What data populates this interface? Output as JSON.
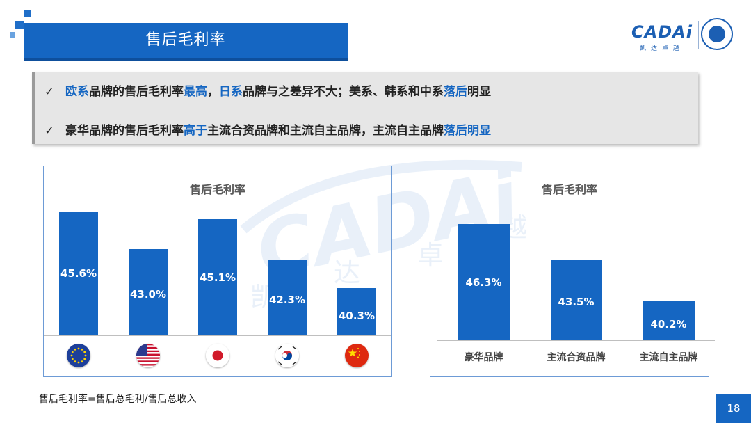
{
  "slide": {
    "title": "售后毛利率",
    "page_number": "18",
    "footnote": "售后毛利率=售后总毛利/售后总收入"
  },
  "logo": {
    "wordmark": "CADAi",
    "subtitle": "凯达卓越"
  },
  "watermark": {
    "wordmark": "CADAi",
    "chars": [
      "凯",
      "达",
      "卓",
      "越"
    ]
  },
  "bullets": [
    {
      "check": "✓",
      "segments": [
        {
          "text": "欧系",
          "hl": true
        },
        {
          "text": "品牌的售后毛利率",
          "hl": false
        },
        {
          "text": "最高",
          "hl": true
        },
        {
          "text": "，",
          "hl": false
        },
        {
          "text": "日系",
          "hl": true
        },
        {
          "text": "品牌与之差异不大；美系、韩系和中系",
          "hl": false
        },
        {
          "text": "落后",
          "hl": true
        },
        {
          "text": "明显",
          "hl": false
        }
      ]
    },
    {
      "check": "✓",
      "segments": [
        {
          "text": "豪华品牌的售后毛利率",
          "hl": false
        },
        {
          "text": "高于",
          "hl": true
        },
        {
          "text": "主流合资品牌和主流自主品牌，主流自主品牌",
          "hl": false
        },
        {
          "text": "落后明显",
          "hl": true
        }
      ]
    }
  ],
  "colors": {
    "brand_blue": "#1566c2",
    "highlight": "#1566c2"
  },
  "chart_data": [
    {
      "type": "bar",
      "title": "售后毛利率",
      "categories": [
        "eu-flag-icon",
        "us-flag-icon",
        "japan-flag-icon",
        "korea-flag-icon",
        "china-flag-icon"
      ],
      "values": [
        45.6,
        43.0,
        45.1,
        42.3,
        40.3
      ],
      "value_labels": [
        "45.6%",
        "43.0%",
        "45.1%",
        "42.3%",
        "40.3%"
      ],
      "ylim": [
        37,
        46.2
      ],
      "grid": false,
      "legend": "none"
    },
    {
      "type": "bar",
      "title": "售后毛利率",
      "categories": [
        "豪华品牌",
        "主流合资品牌",
        "主流自主品牌"
      ],
      "values": [
        46.3,
        43.5,
        40.2
      ],
      "value_labels": [
        "46.3%",
        "43.5%",
        "40.2%"
      ],
      "ylim": [
        37,
        47.1
      ],
      "grid": false,
      "legend": "none"
    }
  ]
}
